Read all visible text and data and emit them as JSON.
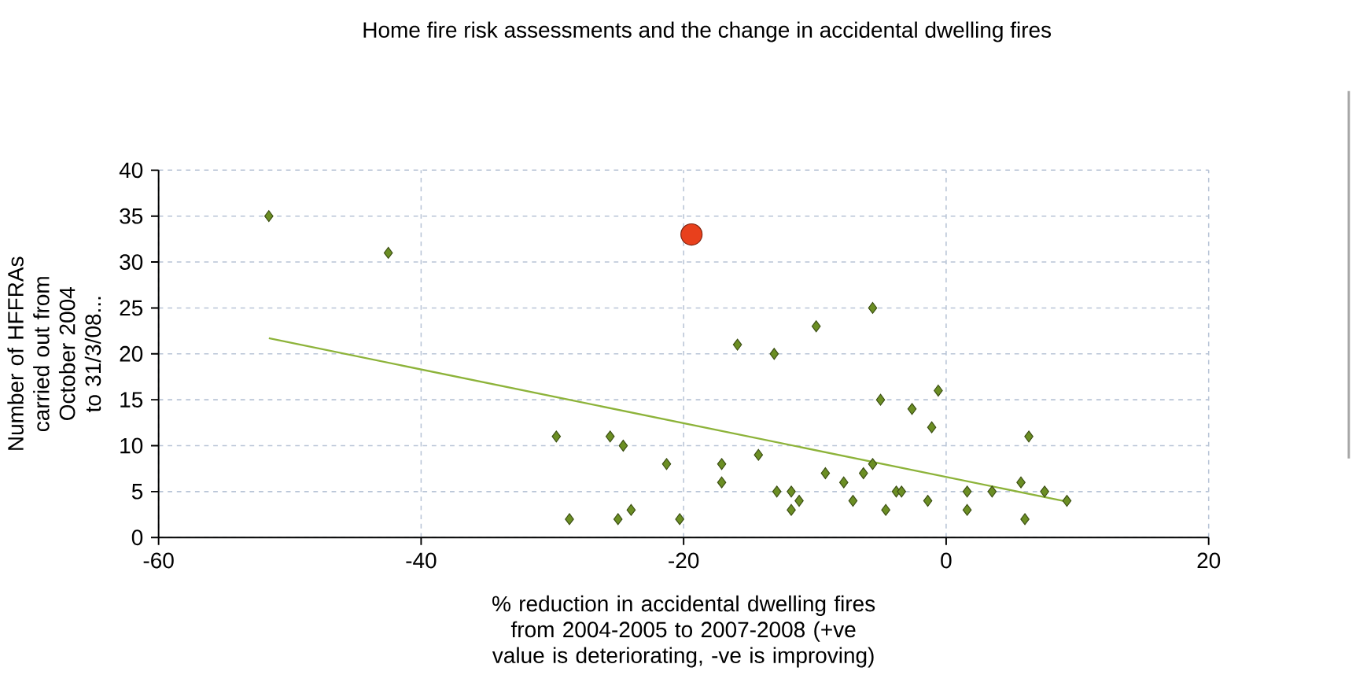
{
  "chart_data": {
    "type": "scatter",
    "title": "Home fire risk assessments and the change in accidental dwelling fires",
    "xlabel": "% reduction in accidental dwelling fires from 2004-2005 to 2007-2008 (+ve value is deteriorating, -ve is improving)",
    "ylabel": "Number of HFFRAs carried out from October 2004 to 31/3/08...",
    "xlim": [
      -60,
      20
    ],
    "xticks": [
      -60,
      -40,
      -20,
      0,
      20
    ],
    "ylim": [
      0,
      40
    ],
    "yticks": [
      0,
      5,
      10,
      15,
      20,
      25,
      30,
      35,
      40
    ],
    "grid": true,
    "marker": "diamond",
    "series": [
      {
        "color": "#6b8e23",
        "x": [
          -51.6,
          -42.5,
          -29.7,
          -28.7,
          -25.6,
          -24.6,
          -25.0,
          -24.0,
          -21.3,
          -20.3,
          -17.1,
          -17.1,
          -15.9,
          -14.3,
          -13.1,
          -12.9,
          -11.8,
          -11.8,
          -11.2,
          -9.9,
          -9.2,
          -7.8,
          -7.1,
          -6.3,
          -5.6,
          -5.6,
          -5.0,
          -4.6,
          -3.8,
          -3.4,
          -2.6,
          -1.4,
          -1.1,
          -0.6,
          1.6,
          1.6,
          3.5,
          5.7,
          6.0,
          6.3,
          7.5,
          9.2
        ],
        "values": [
          35,
          31,
          11,
          2,
          11,
          10,
          2,
          3,
          8,
          2,
          8,
          6,
          21,
          9,
          20,
          5,
          5,
          3,
          4,
          23,
          7,
          6,
          4,
          7,
          8,
          25,
          15,
          3,
          5,
          5,
          14,
          4,
          12,
          16,
          5,
          3,
          5,
          6,
          2,
          11,
          5,
          4
        ]
      },
      {
        "type": "scatter",
        "color": "#e8401c",
        "marker": "circle",
        "x": [
          -19.4
        ],
        "values": [
          33
        ]
      },
      {
        "type": "line",
        "color": "#8db33a",
        "marker": "none",
        "x": [
          -51.6,
          9.2
        ],
        "values": [
          21.7,
          3.9
        ]
      }
    ]
  }
}
